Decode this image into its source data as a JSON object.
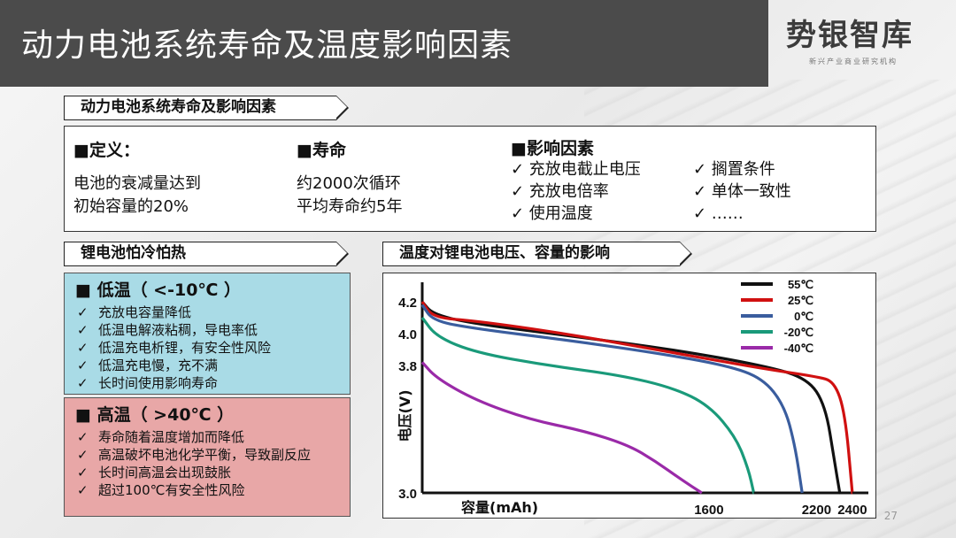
{
  "header": {
    "title": "动力电池系统寿命及温度影响因素",
    "logo_main": "势银智库",
    "logo_sub": "新兴产业商业研究机构"
  },
  "section1": {
    "tag": "动力电池系统寿命及影响因素",
    "definition": {
      "head": "■定义：",
      "lines": [
        "电池的衰减量达到",
        "初始容量的20%"
      ]
    },
    "life": {
      "head": "■寿命",
      "lines": [
        "约2000次循环",
        "平均寿命约5年"
      ]
    },
    "factors": {
      "head": "■影响因素",
      "col1": [
        "✓  充放电截止电压",
        "✓  充放电倍率",
        "✓  使用温度"
      ],
      "col2": [
        "✓  搁置条件",
        "✓  单体一致性",
        "✓  ……"
      ]
    }
  },
  "section2": {
    "tag": "锂电池怕冷怕热",
    "cold": {
      "head": "■   低温（ <-10℃ ）",
      "items": [
        "充放电容量降低",
        "低温电解液粘稠，导电率低",
        "低温充电析锂，有安全性风险",
        "低温充电慢，充不满",
        "长时间使用影响寿命"
      ]
    },
    "hot": {
      "head": "■   高温（ >40℃ ）",
      "items": [
        "寿命随着温度增加而降低",
        "高温破坏电池化学平衡，导致副反应",
        "长时间高温会出现鼓胀",
        "超过100℃有安全性风险"
      ]
    },
    "check": "✓"
  },
  "section3": {
    "tag": "温度对锂电池电压、容量的影响"
  },
  "chart_data": {
    "type": "line",
    "title": "温度对锂电池电压、容量的影响",
    "xlabel": "容量(mAh)",
    "ylabel": "电压(V)",
    "x_ticks": [
      "1600",
      "2200",
      "2400"
    ],
    "y_ticks": [
      "4.2",
      "4.0",
      "3.8",
      "3.0"
    ],
    "series": [
      {
        "name": "55℃",
        "color": "#111111",
        "points": [
          [
            0,
            4.2
          ],
          [
            60,
            4.12
          ],
          [
            300,
            4.06
          ],
          [
            800,
            3.99
          ],
          [
            1400,
            3.9
          ],
          [
            1900,
            3.8
          ],
          [
            2150,
            3.72
          ],
          [
            2250,
            3.55
          ],
          [
            2300,
            3.2
          ],
          [
            2330,
            3.0
          ]
        ]
      },
      {
        "name": "25℃",
        "color": "#d01010",
        "points": [
          [
            0,
            4.2
          ],
          [
            60,
            4.1
          ],
          [
            300,
            4.08
          ],
          [
            800,
            4.0
          ],
          [
            1400,
            3.88
          ],
          [
            1900,
            3.78
          ],
          [
            2200,
            3.73
          ],
          [
            2300,
            3.7
          ],
          [
            2360,
            3.5
          ],
          [
            2400,
            3.0
          ]
        ]
      },
      {
        "name": "0℃",
        "color": "#3a5d9e",
        "points": [
          [
            0,
            4.18
          ],
          [
            60,
            4.08
          ],
          [
            300,
            4.03
          ],
          [
            800,
            3.96
          ],
          [
            1300,
            3.88
          ],
          [
            1700,
            3.8
          ],
          [
            1900,
            3.72
          ],
          [
            2020,
            3.55
          ],
          [
            2080,
            3.3
          ],
          [
            2120,
            3.0
          ]
        ]
      },
      {
        "name": "-20℃",
        "color": "#1a9a7a",
        "points": [
          [
            0,
            4.1
          ],
          [
            80,
            3.98
          ],
          [
            300,
            3.88
          ],
          [
            700,
            3.8
          ],
          [
            1100,
            3.74
          ],
          [
            1400,
            3.66
          ],
          [
            1600,
            3.55
          ],
          [
            1750,
            3.35
          ],
          [
            1820,
            3.15
          ],
          [
            1850,
            3.0
          ]
        ]
      },
      {
        "name": "-40℃",
        "color": "#9a2aa8",
        "points": [
          [
            0,
            3.82
          ],
          [
            80,
            3.72
          ],
          [
            300,
            3.58
          ],
          [
            600,
            3.46
          ],
          [
            900,
            3.39
          ],
          [
            1150,
            3.3
          ],
          [
            1300,
            3.2
          ],
          [
            1450,
            3.08
          ],
          [
            1560,
            3.0
          ]
        ]
      }
    ],
    "xlim": [
      0,
      2450
    ],
    "ylim": [
      3.0,
      4.3
    ]
  },
  "page_number": "27"
}
